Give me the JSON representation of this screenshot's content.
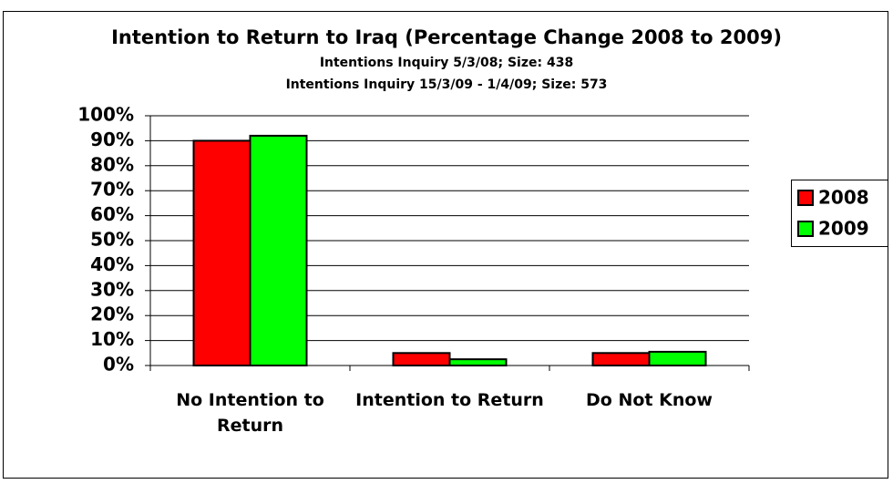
{
  "chart_data": {
    "type": "bar",
    "title": "Intention to Return to Iraq (Percentage Change 2008 to 2009)",
    "subtitle": [
      "Intentions Inquiry 5/3/08; Size: 438",
      "Intentions Inquiry 15/3/09 - 1/4/09; Size: 573"
    ],
    "categories": [
      "No Intention to Return",
      "Intention to Return",
      "Do Not Know"
    ],
    "series": [
      {
        "name": "2008",
        "color": "#ff0000",
        "values": [
          90,
          5,
          5
        ]
      },
      {
        "name": "2009",
        "color": "#00ff00",
        "values": [
          92,
          2.5,
          5.5
        ]
      }
    ],
    "ylim": [
      0,
      100
    ],
    "yticks": [
      {
        "value": 0,
        "label": "0%"
      },
      {
        "value": 10,
        "label": "10%"
      },
      {
        "value": 20,
        "label": "20%"
      },
      {
        "value": 30,
        "label": "30%"
      },
      {
        "value": 40,
        "label": "40%"
      },
      {
        "value": 50,
        "label": "50%"
      },
      {
        "value": 60,
        "label": "60%"
      },
      {
        "value": 70,
        "label": "70%"
      },
      {
        "value": 80,
        "label": "80%"
      },
      {
        "value": 90,
        "label": "90%"
      },
      {
        "value": 100,
        "label": "100%"
      }
    ],
    "grid": true,
    "legend": "right"
  }
}
